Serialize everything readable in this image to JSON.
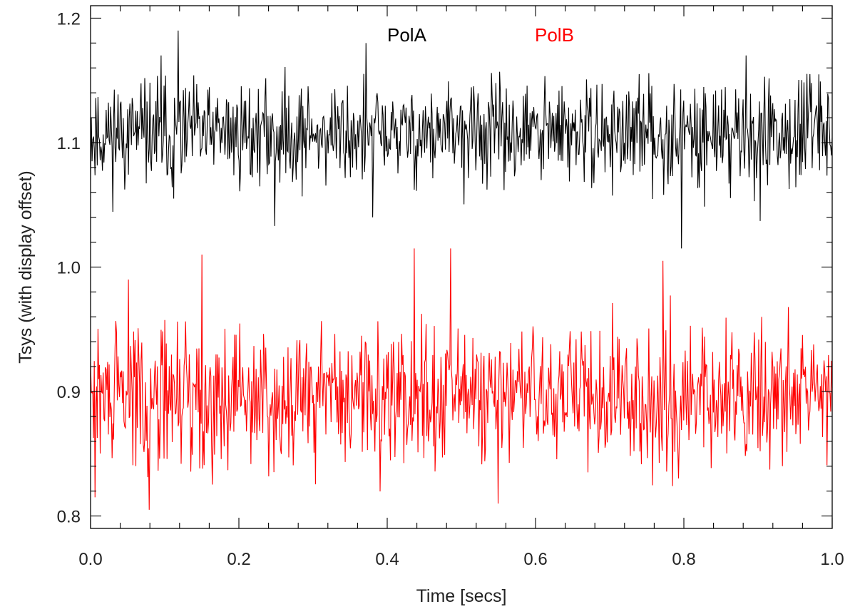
{
  "chart_data": {
    "type": "line",
    "title": "",
    "xlabel": "Time [secs]",
    "ylabel": "Tsys  (with display offset)",
    "xlim": [
      0.0,
      1.0
    ],
    "ylim": [
      0.79,
      1.21
    ],
    "x_ticks": [
      0.0,
      0.2,
      0.4,
      0.6,
      0.8,
      1.0
    ],
    "x_tick_labels": [
      "0.0",
      "0.2",
      "0.4",
      "0.6",
      "0.8",
      "1.0"
    ],
    "y_ticks": [
      0.8,
      0.9,
      1.0,
      1.1,
      1.2
    ],
    "y_tick_labels": [
      "0.8",
      "0.9",
      "1.0",
      "1.1",
      "1.2"
    ],
    "x_minor_per_major": 4,
    "y_minor_per_major": 4,
    "grid": false,
    "legend_position": "top-center",
    "n_points": 1000,
    "series": [
      {
        "name": "PolA",
        "color": "#000000",
        "mean": 1.107,
        "spread": 0.022,
        "seed": 11,
        "spikes": [
          {
            "x": 0.118,
            "y": 1.19
          },
          {
            "x": 0.371,
            "y": 1.18
          },
          {
            "x": 0.095,
            "y": 1.17
          },
          {
            "x": 0.884,
            "y": 1.17
          },
          {
            "x": 0.248,
            "y": 1.033
          },
          {
            "x": 0.38,
            "y": 1.04
          },
          {
            "x": 0.797,
            "y": 1.015
          },
          {
            "x": 0.903,
            "y": 1.037
          },
          {
            "x": 0.112,
            "y": 1.055
          }
        ]
      },
      {
        "name": "PolB",
        "color": "#ff0000",
        "mean": 0.896,
        "spread": 0.03,
        "seed": 29,
        "spikes": [
          {
            "x": 0.15,
            "y": 1.01
          },
          {
            "x": 0.436,
            "y": 1.015
          },
          {
            "x": 0.485,
            "y": 1.015
          },
          {
            "x": 0.772,
            "y": 1.005
          },
          {
            "x": 0.079,
            "y": 0.805
          },
          {
            "x": 0.006,
            "y": 0.815
          },
          {
            "x": 0.55,
            "y": 0.81
          },
          {
            "x": 0.051,
            "y": 0.99
          }
        ]
      }
    ]
  }
}
